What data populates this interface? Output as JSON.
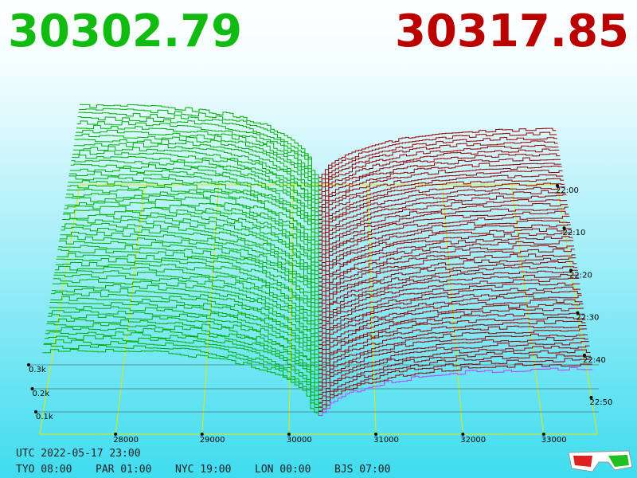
{
  "prices": {
    "bid": "30302.79",
    "ask": "30317.85"
  },
  "x_axis": {
    "ticks": [
      "28000",
      "29000",
      "30000",
      "31000",
      "32000",
      "33000"
    ]
  },
  "depth_axis": {
    "ticks": [
      "0.3k",
      "0.2k",
      "0.1k"
    ]
  },
  "time_axis": {
    "ticks": [
      "22:00",
      "22:10",
      "22:20",
      "22:30",
      "22:40",
      "22:50"
    ]
  },
  "footer": {
    "utc": "UTC 2022-05-17 23:00",
    "zones": [
      "TYO 08:00",
      "PAR 01:00",
      "NYC 19:00",
      "LON 00:00",
      "BJS 07:00"
    ]
  }
}
